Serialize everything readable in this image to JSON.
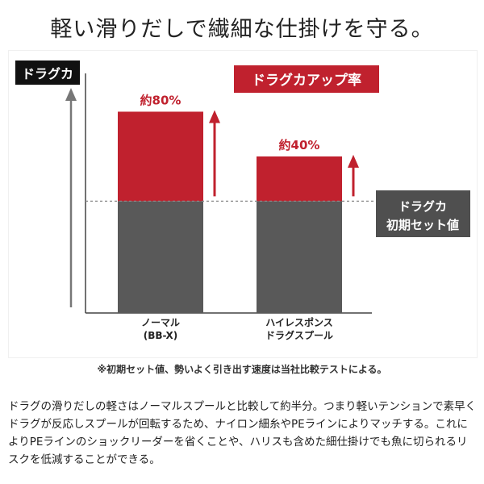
{
  "headline": "軽い滑りだしで繊細な仕掛けを守る。",
  "chart_data": {
    "type": "bar",
    "stacked": true,
    "title": "ドラグカアップ率",
    "ylabel": "ドラグカ",
    "baseline_label_line1": "ドラグカ",
    "baseline_label_line2": "初期セット値",
    "categories": [
      {
        "line1": "ノーマル",
        "line2": "(BB-X)"
      },
      {
        "line1": "ハイレスポンス",
        "line2": "ドラグスプール"
      }
    ],
    "series": [
      {
        "values": [
          100,
          100
        ],
        "color": "#595959"
      },
      {
        "values": [
          80,
          40
        ],
        "color": "#c0212e"
      }
    ],
    "increase_labels": [
      "約80%",
      "約40%"
    ],
    "ylim": [
      0,
      220
    ],
    "grid": false,
    "legend": "none"
  },
  "footnote": "※初期セット値、勢いよく引き出す速度は当社比較テストによる。",
  "description": "ドラグの滑りだしの軽さはノーマルスプールと比較して約半分。つまり軽いテンションで素早くドラグが反応しスプールが回転するため、ナイロン細糸やPEラインによりマッチする。これによりPEラインのショックリーダーを省くことや、ハリスも含めた細仕掛けでも魚に切られるリスクを低減することができる。"
}
